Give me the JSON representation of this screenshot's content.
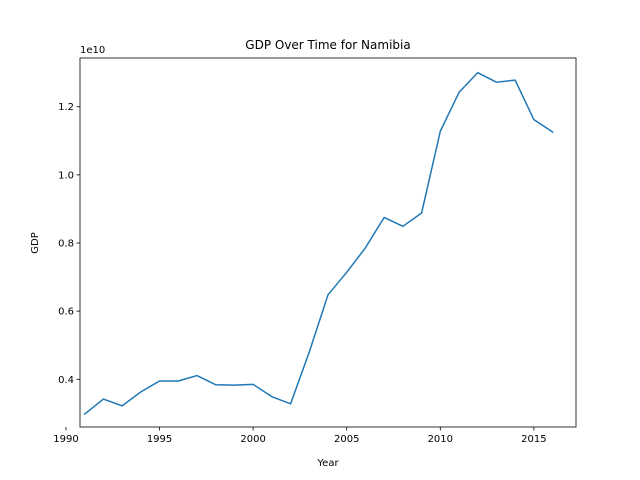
{
  "chart_data": {
    "type": "line",
    "title": "GDP Over Time for Namibia",
    "xlabel": "Year",
    "ylabel": "GDP",
    "offset_label": "1e10",
    "xlim": [
      1990.75,
      2017.25
    ],
    "ylim": [
      0.26,
      1.343
    ],
    "y_scale_multiplier": 10000000000,
    "xticks": [
      1990,
      1995,
      2000,
      2005,
      2010,
      2015
    ],
    "yticks": [
      0.4,
      0.6,
      0.8,
      1.0,
      1.2
    ],
    "ytick_labels": [
      "0.4",
      "0.6",
      "0.8",
      "1.0",
      "1.2"
    ],
    "grid": false,
    "series_color": "#1f77b4",
    "series": [
      {
        "x": [
          1991,
          1992,
          1993,
          1994,
          1995,
          1996,
          1997,
          1998,
          1999,
          2000,
          2001,
          2002,
          2003,
          2004,
          2005,
          2006,
          2007,
          2008,
          2009,
          2010,
          2011,
          2012,
          2013,
          2014,
          2015,
          2016
        ],
        "values": [
          0.298,
          0.342,
          0.322,
          0.363,
          0.395,
          0.395,
          0.411,
          0.384,
          0.383,
          0.385,
          0.349,
          0.328,
          0.48,
          0.648,
          0.714,
          0.786,
          0.875,
          0.849,
          0.888,
          1.128,
          1.242,
          1.3,
          1.272,
          1.278,
          1.162,
          1.126
        ]
      }
    ]
  }
}
